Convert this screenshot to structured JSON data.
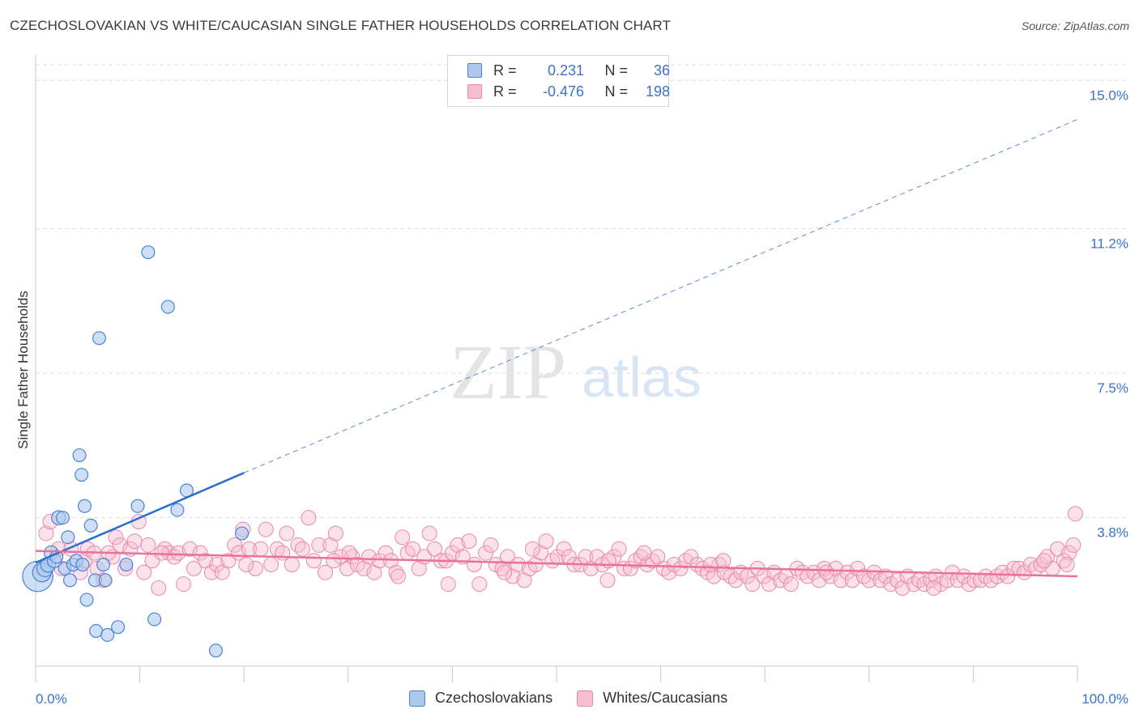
{
  "header": {
    "title": "CZECHOSLOVAKIAN VS WHITE/CAUCASIAN SINGLE FATHER HOUSEHOLDS CORRELATION CHART",
    "source": "Source: ZipAtlas.com"
  },
  "watermark": {
    "zip": "ZIP",
    "atlas": "atlas"
  },
  "colors": {
    "blue_fill": "#aec8ec",
    "blue_stroke": "#4a84d4",
    "blue_line": "#2a6fd0",
    "pink_fill": "#f6bfd0",
    "pink_stroke": "#e888a8",
    "pink_line": "#e8739a",
    "grid": "#dddddd",
    "tick_label": "#3a73c9"
  },
  "legend": {
    "rows": [
      {
        "r_label": "R =",
        "r_value": "0.231",
        "n_label": "N =",
        "n_value": "36"
      },
      {
        "r_label": "R =",
        "r_value": "-0.476",
        "n_label": "N =",
        "n_value": "198"
      }
    ]
  },
  "chart_data": {
    "type": "scatter",
    "title": "CZECHOSLOVAKIAN VS WHITE/CAUCASIAN SINGLE FATHER HOUSEHOLDS CORRELATION CHART",
    "xlabel": "",
    "ylabel": "Single Father Households",
    "xlim": [
      0,
      100
    ],
    "ylim": [
      0,
      15.4
    ],
    "x_tick_labels": [
      "0.0%",
      "100.0%"
    ],
    "y_ticks": [
      3.8,
      7.5,
      11.2,
      15.0
    ],
    "y_tick_labels": [
      "3.8%",
      "7.5%",
      "11.2%",
      "15.0%"
    ],
    "grid": true,
    "legend_position": "top-center",
    "series": [
      {
        "name": "Czechoslovakians",
        "color": "#aec8ec",
        "points": [
          [
            0.2,
            2.3,
            26
          ],
          [
            0.6,
            2.4,
            16
          ],
          [
            0.9,
            2.5,
            14
          ],
          [
            1.2,
            2.6,
            13
          ],
          [
            1.5,
            2.9,
            12
          ],
          [
            1.8,
            2.7,
            12
          ],
          [
            2.2,
            3.8,
            12
          ],
          [
            2.6,
            3.8,
            11
          ],
          [
            2.8,
            2.5,
            11
          ],
          [
            3.1,
            3.3,
            11
          ],
          [
            3.3,
            2.2,
            11
          ],
          [
            3.6,
            2.6,
            11
          ],
          [
            3.9,
            2.7,
            11
          ],
          [
            4.2,
            5.4,
            11
          ],
          [
            4.5,
            2.6,
            11
          ],
          [
            4.4,
            4.9,
            11
          ],
          [
            4.7,
            4.1,
            11
          ],
          [
            4.9,
            1.7,
            11
          ],
          [
            5.3,
            3.6,
            11
          ],
          [
            5.7,
            2.2,
            11
          ],
          [
            5.8,
            0.9,
            11
          ],
          [
            6.1,
            8.4,
            11
          ],
          [
            6.5,
            2.6,
            11
          ],
          [
            6.7,
            2.2,
            11
          ],
          [
            6.9,
            0.8,
            11
          ],
          [
            7.9,
            1.0,
            11
          ],
          [
            8.7,
            2.6,
            11
          ],
          [
            9.8,
            4.1,
            11
          ],
          [
            10.8,
            10.6,
            11
          ],
          [
            11.4,
            1.2,
            11
          ],
          [
            12.7,
            9.2,
            11
          ],
          [
            13.6,
            4.0,
            11
          ],
          [
            14.5,
            4.5,
            11
          ],
          [
            17.3,
            0.4,
            11
          ],
          [
            19.8,
            3.4,
            11
          ],
          [
            2.0,
            2.8,
            11
          ]
        ]
      },
      {
        "name": "Whites/Caucasians",
        "color": "#f6bfd0",
        "points": [
          [
            1.0,
            3.4
          ],
          [
            1.4,
            3.7
          ],
          [
            2.2,
            3.0
          ],
          [
            2.5,
            2.5
          ],
          [
            3.4,
            3.0
          ],
          [
            4.3,
            2.4
          ],
          [
            4.7,
            2.7
          ],
          [
            5.0,
            3.0
          ],
          [
            5.6,
            2.9
          ],
          [
            5.9,
            2.5
          ],
          [
            6.5,
            2.2
          ],
          [
            7.4,
            2.8
          ],
          [
            7.7,
            3.3
          ],
          [
            8.1,
            3.1
          ],
          [
            8.6,
            2.5
          ],
          [
            9.1,
            3.0
          ],
          [
            9.5,
            3.2
          ],
          [
            9.9,
            3.7
          ],
          [
            10.4,
            2.4
          ],
          [
            10.8,
            3.1
          ],
          [
            11.2,
            2.7
          ],
          [
            11.8,
            2.0
          ],
          [
            12.4,
            3.0
          ],
          [
            12.8,
            2.9
          ],
          [
            13.3,
            2.8
          ],
          [
            13.7,
            2.9
          ],
          [
            14.2,
            2.1
          ],
          [
            14.8,
            3.0
          ],
          [
            15.2,
            2.5
          ],
          [
            15.8,
            2.9
          ],
          [
            16.3,
            2.7
          ],
          [
            16.9,
            2.4
          ],
          [
            17.4,
            2.6
          ],
          [
            17.9,
            2.4
          ],
          [
            18.5,
            2.7
          ],
          [
            19.1,
            3.1
          ],
          [
            19.5,
            2.9
          ],
          [
            19.9,
            3.5
          ],
          [
            20.5,
            3.0
          ],
          [
            21.1,
            2.5
          ],
          [
            21.6,
            3.0
          ],
          [
            22.1,
            3.5
          ],
          [
            22.6,
            2.6
          ],
          [
            23.2,
            3.0
          ],
          [
            23.7,
            2.9
          ],
          [
            24.1,
            3.4
          ],
          [
            24.6,
            2.6
          ],
          [
            25.2,
            3.1
          ],
          [
            25.6,
            3.0
          ],
          [
            26.2,
            3.8
          ],
          [
            26.7,
            2.7
          ],
          [
            27.2,
            3.1
          ],
          [
            27.8,
            2.4
          ],
          [
            28.3,
            3.1
          ],
          [
            28.8,
            3.4
          ],
          [
            29.3,
            2.8
          ],
          [
            29.9,
            2.5
          ],
          [
            30.4,
            2.8
          ],
          [
            30.9,
            2.6
          ],
          [
            31.5,
            2.5
          ],
          [
            32.0,
            2.8
          ],
          [
            32.5,
            2.4
          ],
          [
            33.0,
            2.7
          ],
          [
            33.6,
            2.9
          ],
          [
            34.1,
            2.7
          ],
          [
            34.6,
            2.4
          ],
          [
            35.2,
            3.3
          ],
          [
            35.7,
            2.9
          ],
          [
            36.2,
            3.0
          ],
          [
            36.8,
            2.5
          ],
          [
            37.3,
            2.8
          ],
          [
            37.8,
            3.4
          ],
          [
            38.3,
            3.0
          ],
          [
            38.9,
            2.7
          ],
          [
            39.4,
            2.7
          ],
          [
            40.0,
            2.9
          ],
          [
            40.5,
            3.1
          ],
          [
            41.0,
            2.8
          ],
          [
            41.6,
            3.2
          ],
          [
            42.1,
            2.6
          ],
          [
            42.6,
            2.1
          ],
          [
            43.2,
            2.9
          ],
          [
            43.7,
            3.1
          ],
          [
            44.2,
            2.6
          ],
          [
            44.8,
            2.5
          ],
          [
            45.3,
            2.8
          ],
          [
            45.8,
            2.3
          ],
          [
            46.3,
            2.6
          ],
          [
            46.9,
            2.2
          ],
          [
            47.4,
            2.5
          ],
          [
            48.0,
            2.6
          ],
          [
            48.5,
            2.9
          ],
          [
            49.0,
            3.2
          ],
          [
            49.6,
            2.7
          ],
          [
            50.1,
            2.8
          ],
          [
            50.7,
            3.0
          ],
          [
            51.2,
            2.8
          ],
          [
            51.7,
            2.6
          ],
          [
            52.3,
            2.6
          ],
          [
            52.8,
            2.8
          ],
          [
            53.3,
            2.5
          ],
          [
            53.9,
            2.8
          ],
          [
            54.4,
            2.6
          ],
          [
            54.9,
            2.2
          ],
          [
            55.5,
            2.8
          ],
          [
            56.0,
            3.0
          ],
          [
            56.5,
            2.5
          ],
          [
            57.1,
            2.5
          ],
          [
            57.6,
            2.7
          ],
          [
            58.1,
            2.8
          ],
          [
            58.7,
            2.6
          ],
          [
            59.2,
            2.7
          ],
          [
            59.7,
            2.8
          ],
          [
            60.3,
            2.5
          ],
          [
            60.8,
            2.4
          ],
          [
            61.3,
            2.6
          ],
          [
            61.9,
            2.5
          ],
          [
            62.4,
            2.7
          ],
          [
            62.9,
            2.8
          ],
          [
            63.5,
            2.6
          ],
          [
            64.0,
            2.5
          ],
          [
            64.5,
            2.4
          ],
          [
            65.1,
            2.3
          ],
          [
            65.6,
            2.6
          ],
          [
            66.1,
            2.4
          ],
          [
            66.7,
            2.3
          ],
          [
            67.2,
            2.2
          ],
          [
            67.7,
            2.4
          ],
          [
            68.3,
            2.3
          ],
          [
            68.8,
            2.1
          ],
          [
            69.3,
            2.5
          ],
          [
            69.9,
            2.3
          ],
          [
            70.4,
            2.1
          ],
          [
            70.9,
            2.4
          ],
          [
            71.5,
            2.2
          ],
          [
            72.0,
            2.3
          ],
          [
            72.5,
            2.1
          ],
          [
            73.1,
            2.5
          ],
          [
            73.6,
            2.4
          ],
          [
            74.1,
            2.3
          ],
          [
            74.7,
            2.4
          ],
          [
            75.2,
            2.2
          ],
          [
            75.7,
            2.5
          ],
          [
            76.3,
            2.3
          ],
          [
            76.8,
            2.5
          ],
          [
            77.3,
            2.2
          ],
          [
            77.9,
            2.4
          ],
          [
            78.4,
            2.2
          ],
          [
            78.9,
            2.5
          ],
          [
            79.5,
            2.3
          ],
          [
            80.0,
            2.2
          ],
          [
            80.5,
            2.4
          ],
          [
            81.1,
            2.2
          ],
          [
            81.6,
            2.3
          ],
          [
            82.1,
            2.1
          ],
          [
            82.7,
            2.2
          ],
          [
            83.2,
            2.0
          ],
          [
            83.7,
            2.3
          ],
          [
            84.3,
            2.1
          ],
          [
            84.8,
            2.2
          ],
          [
            85.3,
            2.1
          ],
          [
            85.9,
            2.2
          ],
          [
            86.4,
            2.3
          ],
          [
            86.9,
            2.1
          ],
          [
            87.5,
            2.2
          ],
          [
            88.0,
            2.4
          ],
          [
            88.5,
            2.2
          ],
          [
            89.1,
            2.3
          ],
          [
            89.6,
            2.1
          ],
          [
            90.1,
            2.2
          ],
          [
            90.7,
            2.2
          ],
          [
            91.2,
            2.3
          ],
          [
            91.7,
            2.2
          ],
          [
            92.3,
            2.3
          ],
          [
            92.8,
            2.4
          ],
          [
            93.3,
            2.3
          ],
          [
            93.9,
            2.5
          ],
          [
            94.4,
            2.5
          ],
          [
            94.9,
            2.4
          ],
          [
            95.5,
            2.6
          ],
          [
            96.0,
            2.5
          ],
          [
            96.5,
            2.6
          ],
          [
            97.1,
            2.8
          ],
          [
            97.6,
            2.5
          ],
          [
            98.1,
            3.0
          ],
          [
            98.7,
            2.7
          ],
          [
            99.2,
            2.9
          ],
          [
            99.6,
            3.1
          ],
          [
            99.0,
            2.6
          ],
          [
            99.8,
            3.9
          ],
          [
            64.8,
            2.6
          ],
          [
            58.4,
            2.9
          ],
          [
            47.7,
            3.0
          ],
          [
            39.6,
            2.1
          ],
          [
            30.1,
            2.9
          ],
          [
            20.2,
            2.6
          ],
          [
            12.1,
            2.9
          ],
          [
            7.0,
            2.9
          ],
          [
            45.0,
            2.4
          ],
          [
            55.0,
            2.7
          ],
          [
            66.0,
            2.7
          ],
          [
            75.9,
            2.4
          ],
          [
            86.2,
            2.0
          ],
          [
            96.8,
            2.7
          ],
          [
            34.8,
            2.3
          ],
          [
            28.6,
            2.7
          ]
        ]
      }
    ],
    "trend_lines": [
      {
        "series": "Czechoslovakians",
        "solid": [
          [
            0,
            2.65
          ],
          [
            20,
            4.95
          ]
        ],
        "dashed": [
          [
            20,
            4.95
          ],
          [
            100,
            14.0
          ]
        ]
      },
      {
        "series": "Whites/Caucasians",
        "solid": [
          [
            0,
            2.95
          ],
          [
            100,
            2.3
          ]
        ]
      }
    ]
  }
}
